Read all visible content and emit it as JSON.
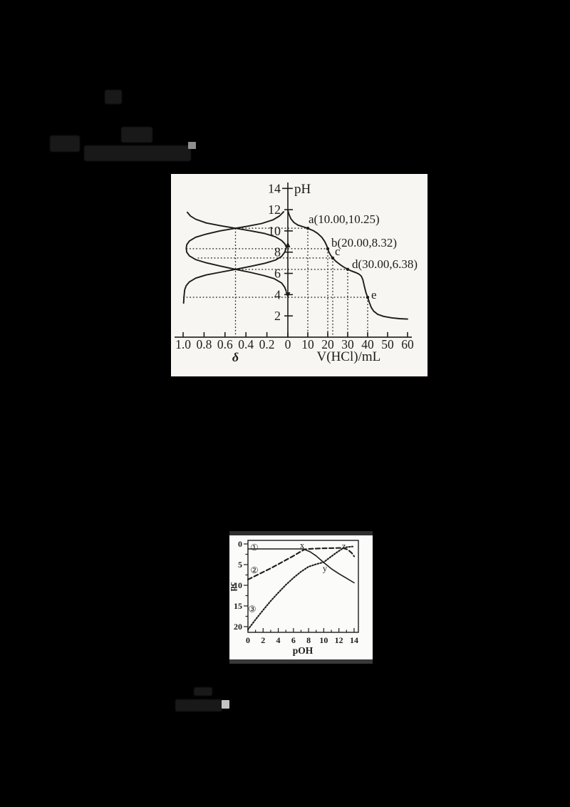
{
  "page": {
    "background_color": "#000000",
    "ink_color": "#1c1c1c"
  },
  "chart1": {
    "y_axis": {
      "title": "pH",
      "ticks": [
        "2",
        "4",
        "6",
        "8",
        "10",
        "12",
        "14"
      ]
    },
    "x_axis_right": {
      "title": "V(HCl)/mL",
      "ticks": [
        "0",
        "10",
        "20",
        "30",
        "40",
        "50",
        "60"
      ]
    },
    "x_axis_left": {
      "title": "δ",
      "ticks": [
        "1.0",
        "0.8",
        "0.6",
        "0.4",
        "0.2"
      ]
    },
    "point_labels": [
      "a(10.00,10.25)",
      "b(20.00,8.32)",
      "c",
      "d(30.00,6.38)",
      "e"
    ]
  },
  "chart2": {
    "y_axis": {
      "title": "pc",
      "ticks": [
        "0",
        "5",
        "10",
        "15",
        "20"
      ]
    },
    "x_axis": {
      "title": "pOH",
      "ticks": [
        "0",
        "2",
        "4",
        "6",
        "8",
        "10",
        "12",
        "14"
      ]
    },
    "curve_labels": [
      "①",
      "②",
      "③"
    ],
    "point_labels": [
      "x",
      "y",
      "z"
    ]
  },
  "chart_data": [
    {
      "type": "line",
      "title": "pH titration curve (right, pH vs V(HCl)) with species distribution fraction δ vs pH (left)",
      "ylabel": "pH",
      "ylim": [
        0,
        14
      ],
      "xlabel_right": "V(HCl)/mL",
      "x_range_right": [
        0,
        60
      ],
      "xlabel_left": "δ",
      "x_range_left": [
        1.0,
        0
      ],
      "grid": false,
      "series": [
        {
          "name": "titration-curve",
          "x_domain": "V",
          "style": "solid",
          "points": [
            [
              0,
              11.95
            ],
            [
              0.5,
              11.6
            ],
            [
              1.5,
              11.15
            ],
            [
              3,
              10.8
            ],
            [
              5,
              10.55
            ],
            [
              8,
              10.37
            ],
            [
              10,
              10.25
            ],
            [
              13,
              10.0
            ],
            [
              15,
              9.75
            ],
            [
              17,
              9.4
            ],
            [
              18.5,
              9.0
            ],
            [
              19.5,
              8.6
            ],
            [
              20,
              8.32
            ],
            [
              20.6,
              8.0
            ],
            [
              21.5,
              7.7
            ],
            [
              22.5,
              7.45
            ],
            [
              24,
              7.15
            ],
            [
              26,
              6.85
            ],
            [
              28,
              6.6
            ],
            [
              30,
              6.38
            ],
            [
              32,
              6.22
            ],
            [
              34,
              6.08
            ],
            [
              35.5,
              5.95
            ],
            [
              36.8,
              5.75
            ],
            [
              37.6,
              5.4
            ],
            [
              38.4,
              4.75
            ],
            [
              39.2,
              4.15
            ],
            [
              40,
              3.75
            ],
            [
              40.8,
              3.3
            ],
            [
              41.8,
              2.8
            ],
            [
              43,
              2.45
            ],
            [
              45,
              2.15
            ],
            [
              48,
              1.95
            ],
            [
              52,
              1.82
            ],
            [
              56,
              1.74
            ],
            [
              60,
              1.7
            ]
          ]
        },
        {
          "name": "distribution-curve-upper",
          "x_domain": "delta",
          "style": "solid",
          "points": [
            [
              0.96,
              11.75
            ],
            [
              0.93,
              11.4
            ],
            [
              0.88,
              11.1
            ],
            [
              0.78,
              10.75
            ],
            [
              0.65,
              10.5
            ],
            [
              0.5,
              10.25
            ],
            [
              0.35,
              10.0
            ],
            [
              0.22,
              9.75
            ],
            [
              0.12,
              9.45
            ],
            [
              0.06,
              9.1
            ],
            [
              0.03,
              8.8
            ],
            [
              0.015,
              8.5
            ]
          ]
        },
        {
          "name": "distribution-curve-middle",
          "x_domain": "delta",
          "style": "solid",
          "points": [
            [
              0.04,
              11.8
            ],
            [
              0.08,
              11.4
            ],
            [
              0.14,
              11.05
            ],
            [
              0.25,
              10.7
            ],
            [
              0.38,
              10.45
            ],
            [
              0.5,
              10.25
            ],
            [
              0.65,
              10.0
            ],
            [
              0.78,
              9.7
            ],
            [
              0.88,
              9.4
            ],
            [
              0.94,
              9.05
            ],
            [
              0.965,
              8.7
            ],
            [
              0.97,
              8.35
            ],
            [
              0.965,
              8.0
            ],
            [
              0.94,
              7.65
            ],
            [
              0.88,
              7.3
            ],
            [
              0.78,
              7.0
            ],
            [
              0.65,
              6.7
            ],
            [
              0.5,
              6.38
            ],
            [
              0.36,
              6.1
            ],
            [
              0.23,
              5.8
            ],
            [
              0.13,
              5.5
            ],
            [
              0.06,
              5.1
            ],
            [
              0.03,
              4.7
            ],
            [
              0.015,
              4.3
            ]
          ]
        },
        {
          "name": "distribution-curve-lower",
          "x_domain": "delta",
          "style": "solid",
          "points": [
            [
              0.015,
              8.4
            ],
            [
              0.03,
              8.0
            ],
            [
              0.06,
              7.6
            ],
            [
              0.12,
              7.25
            ],
            [
              0.22,
              6.95
            ],
            [
              0.35,
              6.68
            ],
            [
              0.5,
              6.38
            ],
            [
              0.65,
              6.1
            ],
            [
              0.78,
              5.85
            ],
            [
              0.88,
              5.55
            ],
            [
              0.94,
              5.2
            ],
            [
              0.97,
              4.85
            ],
            [
              0.985,
              4.45
            ],
            [
              0.99,
              4.0
            ],
            [
              0.993,
              3.55
            ],
            [
              0.995,
              3.2
            ]
          ]
        }
      ],
      "labeled_points": [
        {
          "label": "a(10.00,10.25)",
          "V": 10.0,
          "pH": 10.25
        },
        {
          "label": "b(20.00,8.32)",
          "V": 20.0,
          "pH": 8.32
        },
        {
          "label": "c",
          "V": 22.5,
          "pH": 7.45
        },
        {
          "label": "d(30.00,6.38)",
          "V": 30.0,
          "pH": 6.38
        },
        {
          "label": "e",
          "V": 40.0,
          "pH": 3.75
        }
      ],
      "crossings_at_half_delta": [
        {
          "delta": 0.5,
          "pH": 10.25
        },
        {
          "delta": 0.5,
          "pH": 6.38
        }
      ],
      "guides": {
        "horizontal": [
          {
            "pH": 10.25,
            "from_delta": 0.5,
            "to_V": 10
          },
          {
            "pH": 8.32,
            "from_delta": 0.97,
            "to_V": 20
          },
          {
            "pH": 7.45,
            "from_delta": 0.86,
            "to_V": 22.5
          },
          {
            "pH": 6.38,
            "from_delta": 0.5,
            "to_V": 30
          },
          {
            "pH": 3.75,
            "from_delta": 1.0,
            "to_V": 40
          }
        ],
        "vertical_V": [
          {
            "V": 10,
            "pH": 10.25
          },
          {
            "V": 20,
            "pH": 8.32
          },
          {
            "V": 22.5,
            "pH": 7.45
          },
          {
            "V": 30,
            "pH": 6.38
          },
          {
            "V": 40,
            "pH": 3.75
          }
        ],
        "vertical_delta": [
          {
            "delta": 0.5,
            "pH": 10.25
          }
        ]
      }
    },
    {
      "type": "line",
      "title": "pc vs pOH with three curves ① ② ③ and points x, y, z",
      "xlabel": "pOH",
      "ylabel": "pc",
      "xlim": [
        0,
        14
      ],
      "ylim": [
        0,
        20
      ],
      "y_axis_inverted": true,
      "x_minor_ticks": [
        1,
        3,
        5,
        7,
        9,
        11,
        13
      ],
      "y_minor_ticks": [
        2.5,
        7.5,
        12.5,
        17.5
      ],
      "grid": false,
      "series": [
        {
          "name": "curve-1",
          "label": "①",
          "style": "solid",
          "points": [
            [
              0,
              1.2
            ],
            [
              7.3,
              1.2
            ],
            [
              8.2,
              1.9
            ],
            [
              9,
              2.9
            ],
            [
              10,
              4.5
            ],
            [
              11,
              6.0
            ],
            [
              12,
              7.2
            ],
            [
              13,
              8.3
            ],
            [
              14,
              9.4
            ]
          ]
        },
        {
          "name": "curve-2",
          "label": "②",
          "style": "dashed",
          "points": [
            [
              0,
              8.6
            ],
            [
              1,
              7.7
            ],
            [
              2,
              6.8
            ],
            [
              3,
              5.9
            ],
            [
              4,
              4.9
            ],
            [
              5,
              3.9
            ],
            [
              6,
              2.9
            ],
            [
              7,
              1.8
            ],
            [
              7.5,
              1.3
            ],
            [
              8.5,
              1.15
            ],
            [
              10,
              1.05
            ],
            [
              11.5,
              1.0
            ],
            [
              12.5,
              0.95
            ],
            [
              13.2,
              1.4
            ],
            [
              13.7,
              2.2
            ],
            [
              14,
              3.0
            ]
          ]
        },
        {
          "name": "curve-3",
          "label": "③",
          "style": "dotted",
          "points": [
            [
              0,
              20.7
            ],
            [
              1,
              18.3
            ],
            [
              2,
              16.0
            ],
            [
              3,
              13.8
            ],
            [
              4,
              11.8
            ],
            [
              5,
              9.9
            ],
            [
              6,
              8.2
            ],
            [
              7,
              6.7
            ],
            [
              8,
              5.5
            ],
            [
              9,
              4.9
            ],
            [
              10,
              4.4
            ],
            [
              10.8,
              3.3
            ],
            [
              11.6,
              2.2
            ],
            [
              12.4,
              1.2
            ],
            [
              13,
              0.8
            ],
            [
              13.6,
              0.65
            ],
            [
              14,
              0.6
            ]
          ]
        }
      ],
      "labeled_points": [
        {
          "label": "x",
          "pOH": 7.3,
          "pc": 1.2
        },
        {
          "label": "y",
          "pOH": 9.9,
          "pc": 4.5
        },
        {
          "label": "z",
          "pOH": 12.5,
          "pc": 0.95
        }
      ],
      "annotations": [
        {
          "text": "①",
          "pOH": 0.85,
          "pc": 0.75,
          "kind": "circled"
        },
        {
          "text": "②",
          "pOH": 0.85,
          "pc": 6.3,
          "kind": "circled"
        },
        {
          "text": "③",
          "pOH": 0.55,
          "pc": 15.7,
          "kind": "circled"
        },
        {
          "text": "x",
          "pOH": 7.15,
          "pc": 0.3,
          "kind": "point"
        },
        {
          "text": "y",
          "pOH": 10.15,
          "pc": 5.9,
          "kind": "point"
        },
        {
          "text": "z",
          "pOH": 12.65,
          "pc": 0.45,
          "kind": "point"
        }
      ]
    }
  ]
}
